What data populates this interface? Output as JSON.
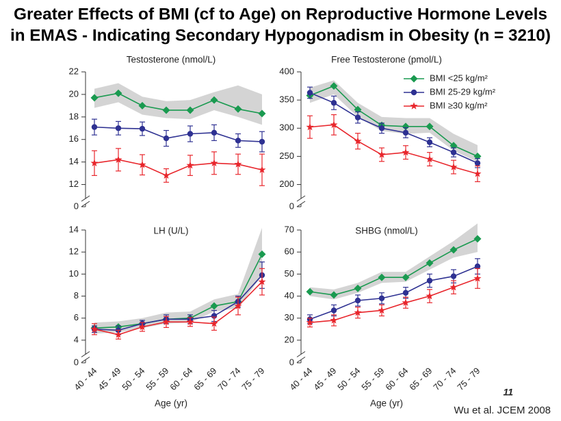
{
  "title": [
    "Greater Effects of BMI (cf to Age) on Reproductive Hormone Levels",
    "in EMAS - Indicating Secondary Hypogonadism in Obesity (n = 3210)"
  ],
  "page_number": "11",
  "citation": "Wu et al. JCEM 2008",
  "chart_data": [
    {
      "type": "line",
      "title": "Testosterone (nmol/L)",
      "axis_break": true,
      "categories": [
        null,
        null,
        null,
        null,
        null,
        null,
        null,
        null
      ],
      "ylim": [
        11,
        22
      ],
      "yticks": [
        0,
        12,
        14,
        16,
        18,
        20,
        22
      ],
      "band": {
        "color": "#d4d4d4",
        "low": [
          18.8,
          19.3,
          18.2,
          17.9,
          17.8,
          18.6,
          18.0,
          17.3
        ],
        "high": [
          20.5,
          21.0,
          19.8,
          19.4,
          19.5,
          20.2,
          20.8,
          20.0
        ]
      },
      "series": [
        {
          "name": "BMI <25 kg/m²",
          "color": "#1a9a50",
          "marker": "diamond",
          "values": [
            19.7,
            20.1,
            19.0,
            18.6,
            18.6,
            19.5,
            18.7,
            18.3
          ]
        },
        {
          "name": "BMI 25-29 kg/m²",
          "color": "#2e3192",
          "marker": "circle",
          "values": [
            17.1,
            17.0,
            16.95,
            16.1,
            16.5,
            16.6,
            15.9,
            15.8
          ],
          "errors": [
            0.7,
            0.6,
            0.6,
            0.7,
            0.7,
            0.7,
            0.6,
            0.9
          ]
        },
        {
          "name": "BMI ≥30 kg/m²",
          "color": "#e8262c",
          "marker": "star",
          "values": [
            13.9,
            14.2,
            13.75,
            12.8,
            13.7,
            13.9,
            13.8,
            13.3
          ],
          "errors": [
            1.1,
            1.0,
            0.9,
            0.6,
            0.9,
            1.0,
            0.9,
            1.4
          ]
        }
      ]
    },
    {
      "type": "line",
      "title": "Free Testosterone (pmol/L)",
      "axis_break": true,
      "legend": "upper right",
      "categories": [
        null,
        null,
        null,
        null,
        null,
        null,
        null,
        null
      ],
      "ylim": [
        180,
        400
      ],
      "yticks": [
        0,
        200,
        250,
        300,
        350,
        400
      ],
      "band": {
        "color": "#d4d4d4",
        "low": [
          345,
          360,
          320,
          295,
          290,
          292,
          260,
          240
        ],
        "high": [
          372,
          385,
          345,
          320,
          318,
          318,
          290,
          270
        ]
      },
      "series": [
        {
          "name": "BMI <25 kg/m²",
          "color": "#1a9a50",
          "marker": "diamond",
          "values": [
            358,
            375,
            333,
            305,
            303,
            303,
            269,
            250
          ]
        },
        {
          "name": "BMI 25-29 kg/m²",
          "color": "#2e3192",
          "marker": "circle",
          "values": [
            363,
            345,
            319,
            300,
            292,
            275,
            257,
            238
          ],
          "errors": [
            10,
            12,
            10,
            9,
            9,
            8,
            8,
            8
          ]
        },
        {
          "name": "BMI ≥30 kg/m²",
          "color": "#e8262c",
          "marker": "star",
          "values": [
            302,
            306,
            277,
            253,
            257,
            245,
            231,
            219
          ],
          "errors": [
            20,
            18,
            14,
            12,
            12,
            12,
            12,
            14
          ]
        }
      ]
    },
    {
      "type": "line",
      "title": "LH (U/L)",
      "axis_break": true,
      "xlabel": "Age (yr)",
      "categories": [
        "40 - 44",
        "45 - 49",
        "50 - 54",
        "55 - 59",
        "60 - 64",
        "65 - 69",
        "70 - 74",
        "75 - 79"
      ],
      "ylim": [
        3,
        14
      ],
      "yticks": [
        0,
        4,
        6,
        8,
        10,
        12,
        14
      ],
      "band": {
        "color": "#d4d4d4",
        "low": [
          4.6,
          4.7,
          5.1,
          5.5,
          5.6,
          6.6,
          6.9,
          9.9
        ],
        "high": [
          5.6,
          5.7,
          6.0,
          6.5,
          6.6,
          7.7,
          8.2,
          14.2
        ]
      },
      "series": [
        {
          "name": "BMI <25 kg/m²",
          "color": "#1a9a50",
          "marker": "diamond",
          "values": [
            5.1,
            5.2,
            5.5,
            5.9,
            6.0,
            7.1,
            7.5,
            11.8
          ]
        },
        {
          "name": "BMI 25-29 kg/m²",
          "color": "#2e3192",
          "marker": "circle",
          "values": [
            5.0,
            4.9,
            5.5,
            5.9,
            5.9,
            6.2,
            7.5,
            9.9
          ],
          "errors": [
            0.3,
            0.4,
            0.3,
            0.4,
            0.4,
            0.5,
            0.5,
            1.2
          ]
        },
        {
          "name": "BMI ≥30 kg/m²",
          "color": "#e8262c",
          "marker": "star",
          "values": [
            5.0,
            4.5,
            5.2,
            5.65,
            5.65,
            5.5,
            7.1,
            9.3
          ],
          "errors": [
            0.5,
            0.4,
            0.4,
            0.5,
            0.4,
            0.6,
            0.8,
            1.2
          ]
        }
      ]
    },
    {
      "type": "line",
      "title": "SHBG (nmol/L)",
      "axis_break": true,
      "xlabel": "Age (yr)",
      "categories": [
        "40 - 44",
        "45 - 49",
        "50 - 54",
        "55 - 59",
        "60 - 64",
        "65 - 69",
        "70 - 74",
        "75 - 79"
      ],
      "ylim": [
        15,
        70
      ],
      "yticks": [
        0,
        20,
        30,
        40,
        50,
        60,
        70
      ],
      "band": {
        "color": "#d4d4d4",
        "low": [
          40,
          38.5,
          41.5,
          46,
          46.5,
          52,
          57.5,
          60
        ],
        "high": [
          44,
          43,
          46,
          51,
          51,
          58,
          65,
          73
        ]
      },
      "series": [
        {
          "name": "BMI <25 kg/m²",
          "color": "#1a9a50",
          "marker": "diamond",
          "values": [
            42,
            40.5,
            43.5,
            48.5,
            48.5,
            55,
            61,
            66
          ]
        },
        {
          "name": "BMI 25-29 kg/m²",
          "color": "#2e3192",
          "marker": "circle",
          "values": [
            29.5,
            33.5,
            38,
            39,
            41.5,
            47,
            49,
            53.5
          ],
          "errors": [
            2,
            2.5,
            2.5,
            2.5,
            2.5,
            3,
            3,
            3.5
          ]
        },
        {
          "name": "BMI ≥30 kg/m²",
          "color": "#e8262c",
          "marker": "star",
          "values": [
            28,
            29,
            32.5,
            33.5,
            37,
            40,
            44,
            48
          ],
          "errors": [
            2,
            2.5,
            2.5,
            2.5,
            2.5,
            3,
            3,
            4.5
          ]
        }
      ]
    }
  ]
}
